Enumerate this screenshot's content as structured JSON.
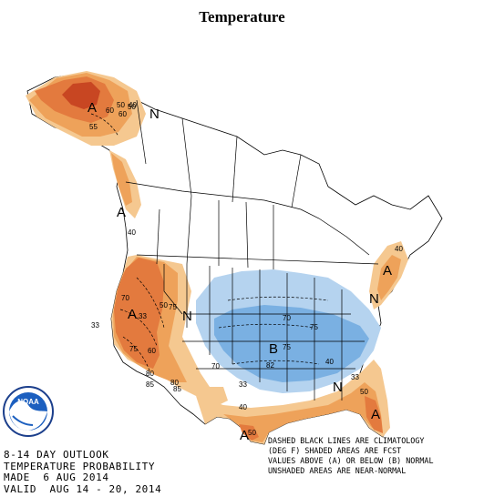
{
  "title": "Temperature",
  "footer": {
    "line1": "8-14 DAY OUTLOOK",
    "line2": "TEMPERATURE PROBABILITY",
    "line3": "MADE  6 AUG 2014",
    "line4": "VALID  AUG 14 - 20, 2014"
  },
  "legend_note": {
    "line1": "DASHED BLACK LINES ARE CLIMATOLOGY",
    "line2": "(DEG F) SHADED AREAS ARE FCST",
    "line3": "VALUES ABOVE (A) OR BELOW (B) NORMAL",
    "line4": "UNSHADED AREAS ARE NEAR-NORMAL"
  },
  "logo_text": "NOAA",
  "map_labels": {
    "alaska_A": "A",
    "alaska_N": "N",
    "bc_A": "A",
    "west_A": "A",
    "plains_N": "N",
    "central_B": "B",
    "southeast_N": "N",
    "florida_A": "A",
    "south_A": "A",
    "northeast_A": "A",
    "north_N": "N"
  },
  "probability_labels": [
    "60",
    "50",
    "40",
    "33",
    "40",
    "50",
    "33",
    "40",
    "50",
    "40",
    "33",
    "50",
    "60",
    "40",
    "33"
  ],
  "climatology_labels": [
    "50",
    "55",
    "60",
    "70",
    "75",
    "80",
    "85",
    "70",
    "75",
    "80",
    "85",
    "75",
    "82",
    "70",
    "75"
  ],
  "colors": {
    "above_33": "#f5c890",
    "above_40": "#eea25a",
    "above_50": "#e37a3e",
    "above_60": "#c84622",
    "below_33": "#b5d3ef",
    "below_40": "#7ab0e2",
    "near_normal": "#ffffff",
    "outline": "#000000"
  }
}
